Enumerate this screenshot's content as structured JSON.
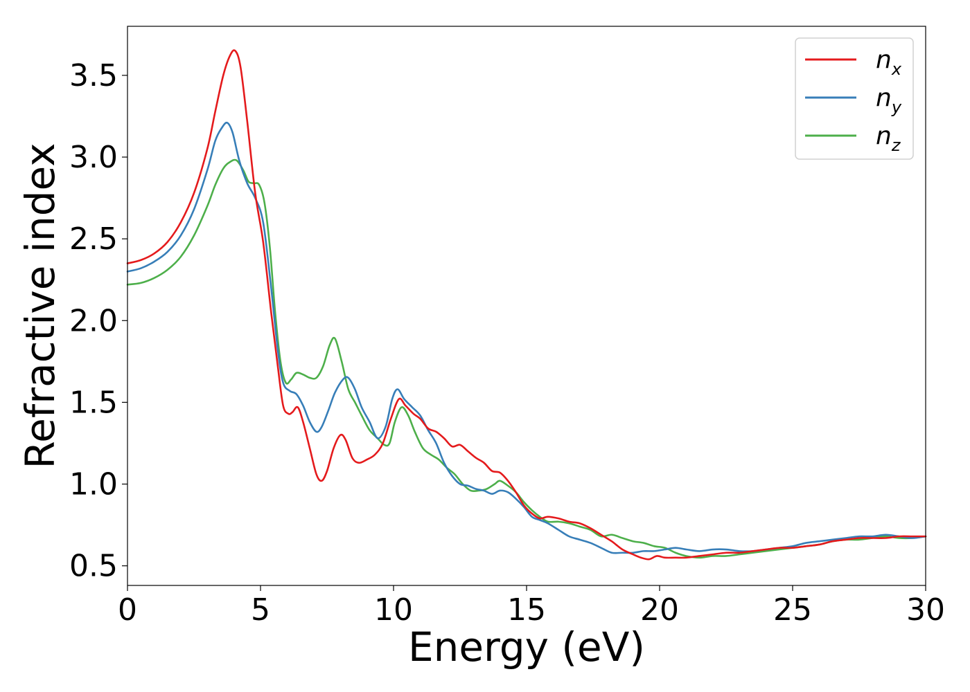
{
  "chart_data": {
    "type": "line",
    "xlabel": "Energy (eV)",
    "ylabel": "Refractive index",
    "xlim": [
      0,
      30
    ],
    "ylim": [
      0.38,
      3.8
    ],
    "xticks": [
      0,
      5,
      10,
      15,
      20,
      25,
      30
    ],
    "yticks": [
      0.5,
      1.0,
      1.5,
      2.0,
      2.5,
      3.0,
      3.5
    ],
    "xtick_labels": [
      "0",
      "5",
      "10",
      "15",
      "20",
      "25",
      "30"
    ],
    "ytick_labels": [
      "0.5",
      "1.0",
      "1.5",
      "2.0",
      "2.5",
      "3.0",
      "3.5"
    ],
    "grid": false,
    "legend_position": "top-right",
    "series": [
      {
        "name": "n_x",
        "label_base": "n",
        "label_sub": "x",
        "color": "#e41a1c",
        "x": [
          0,
          0.5,
          1,
          1.5,
          2,
          2.5,
          3,
          3.3,
          3.6,
          3.85,
          4.05,
          4.25,
          4.5,
          4.8,
          5.1,
          5.4,
          5.65,
          5.85,
          6.05,
          6.2,
          6.4,
          6.6,
          6.85,
          7.1,
          7.3,
          7.5,
          7.75,
          8.0,
          8.2,
          8.45,
          8.7,
          9.0,
          9.3,
          9.6,
          9.9,
          10.2,
          10.45,
          10.75,
          11.0,
          11.3,
          11.6,
          11.9,
          12.2,
          12.5,
          12.8,
          13.1,
          13.4,
          13.7,
          14.0,
          14.3,
          14.6,
          14.9,
          15.2,
          15.5,
          15.8,
          16.2,
          16.6,
          17.0,
          17.4,
          17.8,
          18.2,
          18.6,
          19.0,
          19.3,
          19.6,
          19.9,
          20.2,
          20.6,
          21.0,
          21.5,
          22.0,
          22.5,
          23.0,
          23.5,
          24.0,
          24.5,
          25.0,
          25.5,
          26.0,
          26.5,
          27.0,
          27.5,
          28.0,
          28.5,
          29.0,
          29.5,
          30.0
        ],
        "y": [
          2.35,
          2.37,
          2.41,
          2.48,
          2.6,
          2.78,
          3.05,
          3.28,
          3.5,
          3.62,
          3.65,
          3.55,
          3.22,
          2.78,
          2.48,
          2.05,
          1.72,
          1.48,
          1.43,
          1.44,
          1.47,
          1.38,
          1.22,
          1.06,
          1.02,
          1.08,
          1.22,
          1.3,
          1.27,
          1.16,
          1.13,
          1.15,
          1.18,
          1.25,
          1.4,
          1.52,
          1.48,
          1.43,
          1.4,
          1.34,
          1.32,
          1.28,
          1.23,
          1.24,
          1.2,
          1.16,
          1.13,
          1.08,
          1.07,
          1.02,
          0.95,
          0.87,
          0.82,
          0.79,
          0.8,
          0.79,
          0.77,
          0.76,
          0.73,
          0.69,
          0.65,
          0.6,
          0.57,
          0.55,
          0.54,
          0.56,
          0.55,
          0.55,
          0.55,
          0.56,
          0.57,
          0.58,
          0.58,
          0.59,
          0.6,
          0.61,
          0.61,
          0.62,
          0.63,
          0.65,
          0.66,
          0.67,
          0.67,
          0.67,
          0.68,
          0.68,
          0.68
        ]
      },
      {
        "name": "n_y",
        "label_base": "n",
        "label_sub": "y",
        "color": "#377eb8",
        "x": [
          0,
          0.5,
          1,
          1.5,
          2,
          2.5,
          3,
          3.3,
          3.55,
          3.75,
          3.95,
          4.2,
          4.5,
          4.8,
          5.1,
          5.4,
          5.65,
          5.85,
          6.1,
          6.35,
          6.6,
          6.85,
          7.1,
          7.3,
          7.55,
          7.8,
          8.1,
          8.3,
          8.55,
          8.8,
          9.1,
          9.4,
          9.7,
          9.95,
          10.15,
          10.4,
          10.7,
          11.0,
          11.3,
          11.6,
          11.9,
          12.2,
          12.5,
          12.8,
          13.1,
          13.4,
          13.7,
          14.0,
          14.3,
          14.6,
          14.9,
          15.2,
          15.5,
          15.8,
          16.2,
          16.6,
          17.0,
          17.4,
          17.8,
          18.2,
          18.6,
          19.0,
          19.4,
          19.8,
          20.2,
          20.6,
          21.0,
          21.5,
          22.0,
          22.5,
          23.0,
          23.5,
          24.0,
          24.5,
          25.0,
          25.5,
          26.0,
          26.5,
          27.0,
          27.5,
          28.0,
          28.5,
          29.0,
          29.5,
          30.0
        ],
        "y": [
          2.3,
          2.32,
          2.36,
          2.42,
          2.52,
          2.68,
          2.92,
          3.1,
          3.18,
          3.21,
          3.15,
          2.98,
          2.84,
          2.75,
          2.6,
          2.2,
          1.82,
          1.62,
          1.57,
          1.55,
          1.48,
          1.38,
          1.32,
          1.35,
          1.45,
          1.56,
          1.64,
          1.65,
          1.58,
          1.47,
          1.38,
          1.28,
          1.35,
          1.52,
          1.58,
          1.52,
          1.47,
          1.42,
          1.33,
          1.25,
          1.13,
          1.05,
          1.0,
          0.99,
          0.97,
          0.96,
          0.94,
          0.96,
          0.95,
          0.91,
          0.86,
          0.8,
          0.78,
          0.76,
          0.72,
          0.68,
          0.66,
          0.64,
          0.61,
          0.58,
          0.58,
          0.58,
          0.59,
          0.59,
          0.6,
          0.61,
          0.6,
          0.59,
          0.6,
          0.6,
          0.59,
          0.59,
          0.6,
          0.61,
          0.62,
          0.64,
          0.65,
          0.66,
          0.67,
          0.68,
          0.68,
          0.69,
          0.68,
          0.67,
          0.68
        ]
      },
      {
        "name": "n_z",
        "label_base": "n",
        "label_sub": "z",
        "color": "#4daf4a",
        "x": [
          0,
          0.5,
          1,
          1.5,
          2,
          2.5,
          3,
          3.3,
          3.6,
          3.85,
          4.1,
          4.35,
          4.55,
          4.75,
          4.95,
          5.15,
          5.35,
          5.55,
          5.75,
          5.95,
          6.15,
          6.35,
          6.6,
          6.85,
          7.1,
          7.35,
          7.6,
          7.8,
          8.05,
          8.3,
          8.55,
          8.8,
          9.1,
          9.4,
          9.65,
          9.85,
          10.05,
          10.3,
          10.55,
          10.8,
          11.1,
          11.4,
          11.7,
          12.0,
          12.3,
          12.6,
          12.9,
          13.2,
          13.5,
          13.8,
          14.0,
          14.3,
          14.6,
          14.9,
          15.2,
          15.5,
          15.8,
          16.2,
          16.6,
          17.0,
          17.4,
          17.8,
          18.2,
          18.6,
          19.0,
          19.4,
          19.8,
          20.2,
          20.6,
          21.0,
          21.5,
          22.0,
          22.5,
          23.0,
          23.5,
          24.0,
          24.5,
          25.0,
          25.5,
          26.0,
          26.5,
          27.0,
          27.5,
          28.0,
          28.5,
          29.0,
          29.5,
          30.0
        ],
        "y": [
          2.22,
          2.23,
          2.26,
          2.31,
          2.39,
          2.52,
          2.7,
          2.83,
          2.93,
          2.97,
          2.98,
          2.92,
          2.85,
          2.84,
          2.83,
          2.72,
          2.45,
          2.05,
          1.75,
          1.62,
          1.64,
          1.68,
          1.67,
          1.65,
          1.65,
          1.72,
          1.85,
          1.89,
          1.75,
          1.58,
          1.5,
          1.42,
          1.33,
          1.28,
          1.24,
          1.25,
          1.38,
          1.47,
          1.42,
          1.32,
          1.22,
          1.18,
          1.15,
          1.1,
          1.06,
          1.0,
          0.96,
          0.96,
          0.97,
          1.0,
          1.02,
          0.99,
          0.95,
          0.89,
          0.84,
          0.8,
          0.77,
          0.77,
          0.76,
          0.74,
          0.72,
          0.68,
          0.69,
          0.67,
          0.65,
          0.64,
          0.62,
          0.61,
          0.58,
          0.56,
          0.55,
          0.56,
          0.56,
          0.57,
          0.58,
          0.59,
          0.6,
          0.61,
          0.62,
          0.63,
          0.65,
          0.66,
          0.66,
          0.67,
          0.68,
          0.67,
          0.67,
          0.68
        ]
      }
    ]
  }
}
